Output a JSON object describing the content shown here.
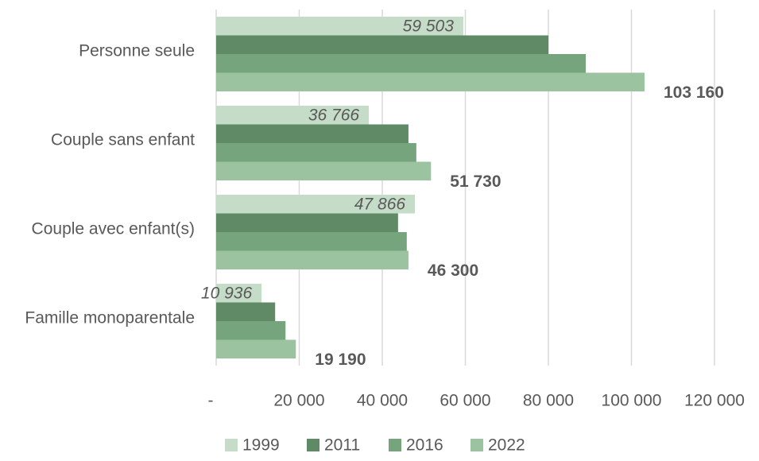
{
  "chart_data": {
    "type": "hbar",
    "categories": [
      "Personne seule",
      "Couple sans enfant",
      "Couple avec enfant(s)",
      "Famille monoparentale"
    ],
    "series": [
      {
        "name": "1999",
        "color": "#c5dcc8",
        "values": [
          59503,
          36766,
          47866,
          10936
        ],
        "value_labels": [
          "59 503",
          "36 766",
          "47 866",
          "10 936"
        ]
      },
      {
        "name": "2011",
        "color": "#5f8a65",
        "values": [
          80000,
          46300,
          43800,
          14200
        ]
      },
      {
        "name": "2016",
        "color": "#76a57d",
        "values": [
          89000,
          48200,
          45900,
          16700
        ]
      },
      {
        "name": "2022",
        "color": "#9bc39f",
        "values": [
          103160,
          51730,
          46300,
          19190
        ],
        "value_labels": [
          "103 160",
          "51 730",
          "46 300",
          "19 190"
        ]
      }
    ],
    "xlim": [
      0,
      120000
    ],
    "xticks": [
      {
        "value": 0,
        "label": "-"
      },
      {
        "value": 20000,
        "label": "20 000"
      },
      {
        "value": 40000,
        "label": "40 000"
      },
      {
        "value": 60000,
        "label": "60 000"
      },
      {
        "value": 80000,
        "label": "80 000"
      },
      {
        "value": 100000,
        "label": "100 000"
      },
      {
        "value": 120000,
        "label": "120 000"
      }
    ],
    "grid": true,
    "legend": "bottom"
  }
}
